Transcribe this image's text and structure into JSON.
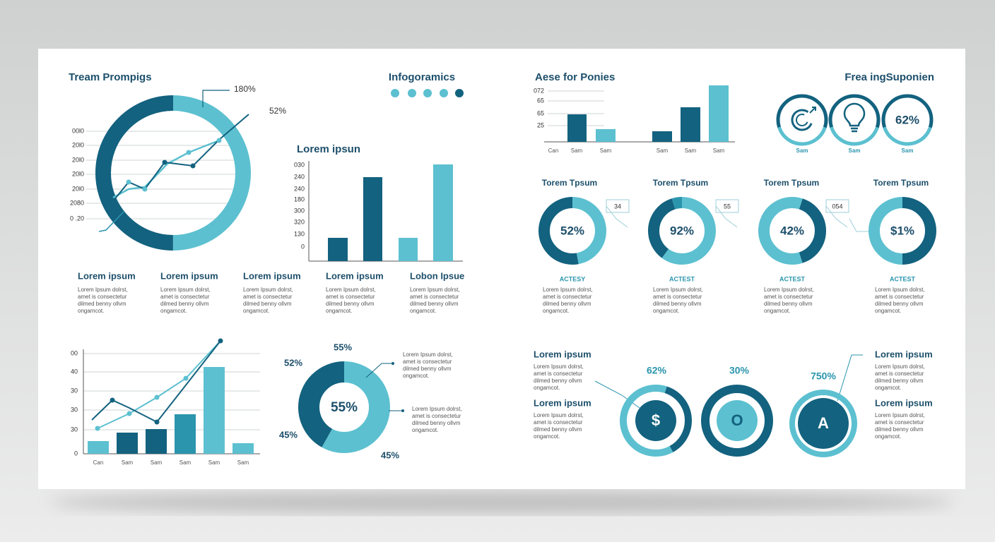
{
  "card": {
    "team": {
      "title": "Tream Prompigs",
      "yaxis": [
        "00l0",
        "20l0",
        "20l0",
        "20l0",
        "20l0",
        "2080",
        "0 .20"
      ],
      "callouts": [
        "180%",
        "52%"
      ]
    },
    "infographics": {
      "title": "Infogoramics"
    },
    "bars": {
      "title": "Lorem ipsun",
      "yaxis": [
        "030",
        "240",
        "240",
        "180",
        "300",
        "320",
        "130",
        "0"
      ]
    },
    "columns": [
      {
        "title": "Lorem ipsum",
        "body": [
          "Lorem Ipsum dolrst,",
          "amet is consectetur",
          "dilmed benny ollvm",
          "ongamcot."
        ]
      },
      {
        "title": "Lorem ipsum",
        "body": [
          "Lorem Ipsum dolrst,",
          "amet is consectetur",
          "dilmed benny ollvm",
          "ongamcot."
        ]
      },
      {
        "title": "Lorem ipsum",
        "body": [
          "Lorem Ipsum dolrst,",
          "amet is consectetur",
          "dilmed benny ollvm",
          "ongamcot."
        ]
      },
      {
        "title": "Lorem ipsum",
        "body": [
          "Lorem Ipsum dolrst,",
          "amet is consectetur",
          "dilmed benny ollvm",
          "ongamcot."
        ]
      },
      {
        "title": "Lobon Ipsue",
        "body": [
          "Lorem Ipsum dolrst,",
          "amet is consectetur",
          "dilmed benny ollvm",
          "ongamcot."
        ]
      }
    ],
    "trend": {
      "yaxis": [
        "00",
        "40",
        "30",
        "30",
        "30",
        "0"
      ],
      "xaxis": [
        "Can",
        "Sam",
        "Sam",
        "Sam",
        "Sam",
        "Sam"
      ]
    },
    "pie": {
      "center": "55%",
      "labels": [
        "55%",
        "52%",
        "45%",
        "45%"
      ],
      "notes": [
        [
          "Lorem Ipsum dolrst,",
          "amet is consectetur",
          "dilmed benny ollvm",
          "ongamcot."
        ],
        [
          "Lorem Ipsum dolrst,",
          "amet is consectetur",
          "dilmed benny ollvm",
          "ongamcot."
        ]
      ]
    },
    "ponies": {
      "title": "Aese for Ponies",
      "yaxis": [
        "072",
        "65",
        "65",
        "25"
      ],
      "xaxis": [
        "Can",
        "Sam",
        "Sam",
        "Sam",
        "Sam",
        "Sam"
      ]
    },
    "icons": {
      "title": "Frea ingSuponien",
      "center": "62%",
      "labels": [
        "Sam",
        "Sam",
        "Sam"
      ]
    },
    "donuts": [
      {
        "title": "Torem Tpsum",
        "value": "52%",
        "callout": "34",
        "label": "ACTESY",
        "body": [
          "Lorem Ipsum dolrst,",
          "amet is consectetur",
          "dilmed benny ollvm",
          "ongamcot."
        ]
      },
      {
        "title": "Torem Tpsum",
        "value": "92%",
        "callout": "55",
        "label": "ACTEST",
        "body": [
          "Lorem Ipsum dolrst,",
          "amet is consectetur",
          "dilmed benny ollvm",
          "ongamcot."
        ]
      },
      {
        "title": "Torem Tpsum",
        "value": "42%",
        "callout": "054",
        "label": "ACTEST",
        "body": [
          "Lorem Ipsum dolrst,",
          "amet is consectetur",
          "dilmed benny ollvm",
          "ongamcot."
        ]
      },
      {
        "title": "Torem Tpsum",
        "value": "$1%",
        "label": "ACTEST",
        "body": [
          "Lorem Ipsum dolrst,",
          "amet is consectetur",
          "dilmed benny ollvm",
          "ongamcot."
        ]
      }
    ],
    "bottom": {
      "left": [
        {
          "title": "Lorem ipsum",
          "body": [
            "Lorem Ipsum dolrst,",
            "amet is consectetur",
            "dilmed benny ollvm",
            "ongamcot."
          ]
        },
        {
          "title": "Lorem ipsum",
          "body": [
            "Lorem Ipsum dolrst,",
            "amet is consectetur",
            "dilmed benny ollvm",
            "ongamcot."
          ]
        }
      ],
      "right": [
        {
          "title": "Lorem ipsum",
          "body": [
            "Lorem Ipsum dolrst,",
            "amet is consectetur",
            "dilmed benny ollvm",
            "ongamcot."
          ]
        },
        {
          "title": "Lorem ipsum",
          "body": [
            "Lorem Ipsum dolrst,",
            "amet is consectetur",
            "dilmed benny ollvm",
            "ongamcot."
          ]
        }
      ],
      "percents": [
        "62%",
        "30%",
        "750%"
      ],
      "icons": [
        "$",
        "O",
        "A"
      ]
    }
  }
}
